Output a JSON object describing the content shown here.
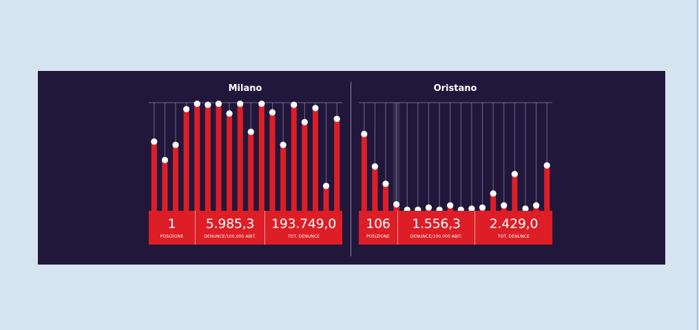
{
  "colors": {
    "page_background": "#d6e3f0",
    "panel_background": "#21173b",
    "bar": "#de1e26",
    "marker": "#ffffff",
    "guide_line": "#6f6892",
    "stats_background": "#de1e26"
  },
  "chart_data": [
    {
      "type": "bar",
      "title": "Milano",
      "ylim": [
        0,
        100
      ],
      "values": [
        64,
        47,
        61,
        94,
        99,
        98,
        99,
        90,
        99,
        73,
        99,
        91,
        61,
        98,
        82,
        95,
        23,
        85
      ],
      "highlight_index": null,
      "stats": [
        {
          "value": "1",
          "label": "POSIZIONE"
        },
        {
          "value": "5.985,3",
          "label": "DENUNCE/100.000 ABIT."
        },
        {
          "value": "193.749,0",
          "label": "TOT. DENUNCE"
        }
      ]
    },
    {
      "type": "bar",
      "title": "Oristano",
      "ylim": [
        0,
        100
      ],
      "values": [
        71,
        41,
        25,
        6,
        1,
        1,
        3,
        1,
        5,
        1,
        2,
        3,
        16,
        5,
        34,
        2,
        5,
        42
      ],
      "highlight_index": 3,
      "stats": [
        {
          "value": "106",
          "label": "POSIZIONE"
        },
        {
          "value": "1.556,3",
          "label": "DENUNCE/100.000 ABIT."
        },
        {
          "value": "2.429,0",
          "label": "TOT. DENUNCE"
        }
      ]
    }
  ]
}
